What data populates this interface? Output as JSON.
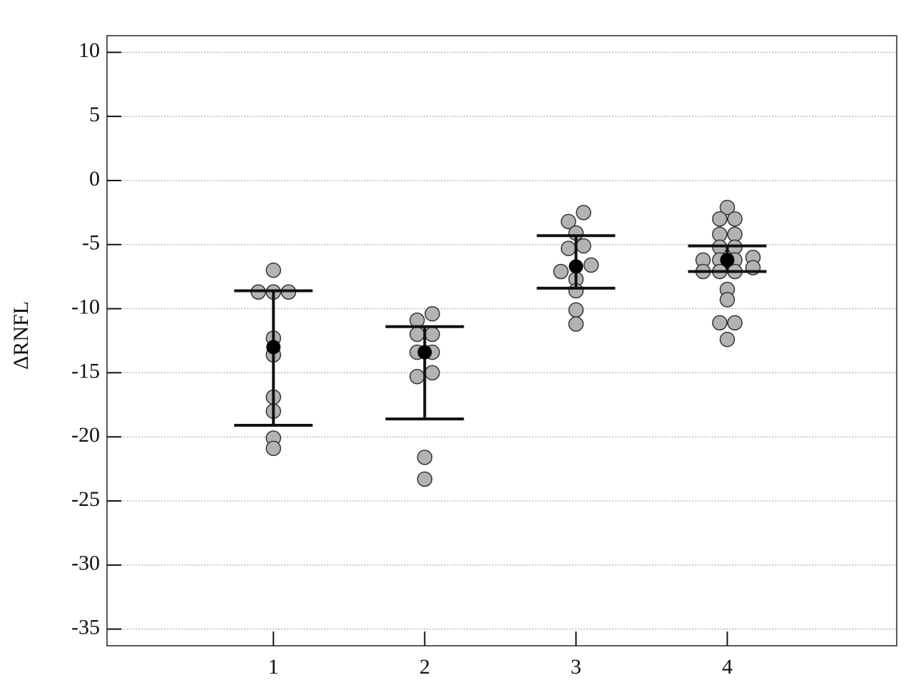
{
  "chart_data": {
    "type": "dot",
    "y_label": "ΔRNFL",
    "xlim": [
      -0.1,
      5.12
    ],
    "xticks": [
      1,
      2,
      3,
      4
    ],
    "ylim": [
      -36.3,
      11.3
    ],
    "yticks": [
      -35,
      -30,
      -25,
      -20,
      -15,
      -10,
      -5,
      0,
      5,
      10
    ],
    "grid": true,
    "point_color": "#b3b3b3",
    "mean_color": "#000000",
    "groups": [
      {
        "x": 1,
        "mean": -13.0,
        "upper": -8.6,
        "lower": -19.1,
        "points": [
          {
            "x": 1,
            "y": -7.0
          },
          {
            "x": 0.9,
            "y": -8.7
          },
          {
            "x": 1,
            "y": -8.7
          },
          {
            "x": 1.1,
            "y": -8.7
          },
          {
            "x": 1,
            "y": -12.3
          },
          {
            "x": 1,
            "y": -13.6
          },
          {
            "x": 1,
            "y": -16.9
          },
          {
            "x": 1,
            "y": -18.0
          },
          {
            "x": 1,
            "y": -20.1
          },
          {
            "x": 1,
            "y": -20.9
          }
        ]
      },
      {
        "x": 2,
        "mean": -13.4,
        "upper": -11.4,
        "lower": -18.6,
        "points": [
          {
            "x": 1.95,
            "y": -10.9
          },
          {
            "x": 2.05,
            "y": -10.4
          },
          {
            "x": 1.95,
            "y": -12.0
          },
          {
            "x": 2.05,
            "y": -12.0
          },
          {
            "x": 1.95,
            "y": -13.4
          },
          {
            "x": 2.05,
            "y": -13.4
          },
          {
            "x": 1.95,
            "y": -15.3
          },
          {
            "x": 2.05,
            "y": -15.0
          },
          {
            "x": 2,
            "y": -21.6
          },
          {
            "x": 2,
            "y": -23.3
          }
        ]
      },
      {
        "x": 3,
        "mean": -6.7,
        "upper": -4.3,
        "lower": -8.4,
        "points": [
          {
            "x": 3.05,
            "y": -2.5
          },
          {
            "x": 2.95,
            "y": -3.2
          },
          {
            "x": 3,
            "y": -4.1
          },
          {
            "x": 2.95,
            "y": -5.3
          },
          {
            "x": 3.05,
            "y": -5.1
          },
          {
            "x": 2.9,
            "y": -7.1
          },
          {
            "x": 3.1,
            "y": -6.6
          },
          {
            "x": 3,
            "y": -7.7
          },
          {
            "x": 3,
            "y": -8.6
          },
          {
            "x": 3,
            "y": -10.1
          },
          {
            "x": 3,
            "y": -11.2
          }
        ]
      },
      {
        "x": 4,
        "mean": -6.2,
        "upper": -5.1,
        "lower": -7.1,
        "points": [
          {
            "x": 4,
            "y": -2.1
          },
          {
            "x": 3.95,
            "y": -3.0
          },
          {
            "x": 4.05,
            "y": -3.0
          },
          {
            "x": 3.95,
            "y": -4.2
          },
          {
            "x": 4.05,
            "y": -4.2
          },
          {
            "x": 3.95,
            "y": -5.2
          },
          {
            "x": 4.05,
            "y": -5.2
          },
          {
            "x": 3.84,
            "y": -6.2
          },
          {
            "x": 3.95,
            "y": -6.2
          },
          {
            "x": 4.05,
            "y": -6.2
          },
          {
            "x": 4.17,
            "y": -6.0
          },
          {
            "x": 3.84,
            "y": -7.1
          },
          {
            "x": 3.95,
            "y": -7.1
          },
          {
            "x": 4.05,
            "y": -7.1
          },
          {
            "x": 4.17,
            "y": -6.8
          },
          {
            "x": 4,
            "y": -8.5
          },
          {
            "x": 4,
            "y": -9.3
          },
          {
            "x": 3.95,
            "y": -11.1
          },
          {
            "x": 4.05,
            "y": -11.1
          },
          {
            "x": 4,
            "y": -12.4
          }
        ]
      }
    ]
  }
}
